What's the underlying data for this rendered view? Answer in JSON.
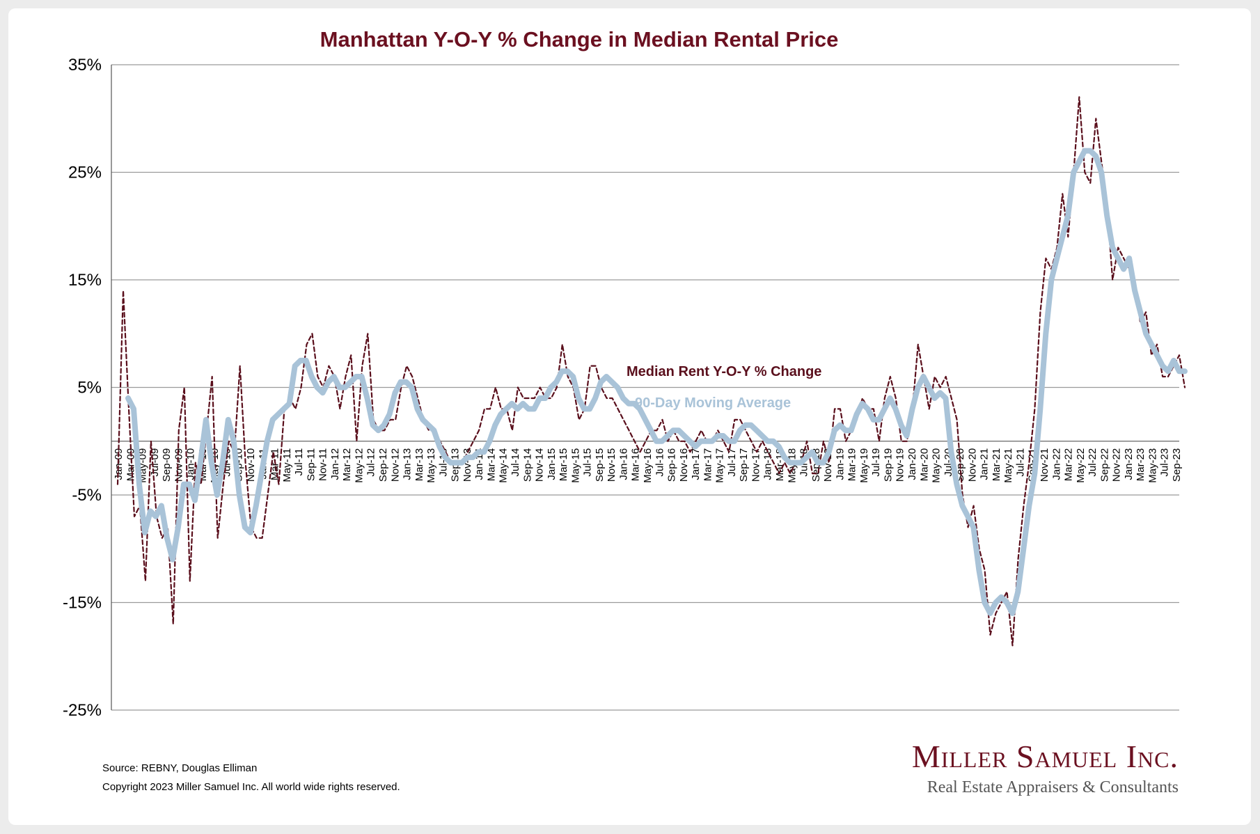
{
  "chart_data": {
    "type": "line",
    "title": "Manhattan Y-O-Y % Change in Median Rental Price",
    "ylim": [
      -25,
      35
    ],
    "yticks": [
      "35%",
      "25%",
      "15%",
      "5%",
      "-5%",
      "-15%",
      "-25%"
    ],
    "ytick_values": [
      35,
      25,
      15,
      5,
      -5,
      -15,
      -25
    ],
    "grid": true,
    "x_tick_labels": [
      "Jan-09",
      "Mar-09",
      "May-09",
      "Jul-09",
      "Sep-09",
      "Nov-09",
      "Jan-10",
      "Mar-10",
      "May-10",
      "Jul-10",
      "Sep-10",
      "Nov-10",
      "Jan-11",
      "Mar-11",
      "May-11",
      "Jul-11",
      "Sep-11",
      "Nov-11",
      "Jan-12",
      "Mar-12",
      "May-12",
      "Jul-12",
      "Sep-12",
      "Nov-12",
      "Jan-13",
      "Mar-13",
      "May-13",
      "Jul-13",
      "Sep-13",
      "Nov-13",
      "Jan-14",
      "Mar-14",
      "May-14",
      "Jul-14",
      "Sep-14",
      "Nov-14",
      "Jan-15",
      "Mar-15",
      "May-15",
      "Jul-15",
      "Sep-15",
      "Nov-15",
      "Jan-16",
      "Mar-16",
      "May-16",
      "Jul-16",
      "Sep-16",
      "Nov-16",
      "Jan-17",
      "Mar-17",
      "May-17",
      "Jul-17",
      "Sep-17",
      "Nov-17",
      "Jan-18",
      "Mar-18",
      "May-18",
      "Jul-18",
      "Sep-18",
      "Nov-18",
      "Jan-19",
      "Mar-19",
      "May-19",
      "Jul-19",
      "Sep-19",
      "Nov-19",
      "Jan-20",
      "Mar-20",
      "May-20",
      "Jul-20",
      "Sep-20",
      "Nov-20",
      "Jan-21",
      "Mar-21",
      "May-21",
      "Jul-21",
      "Sep-21",
      "Nov-21",
      "Jan-22",
      "Mar-22",
      "May-22",
      "Jul-22",
      "Sep-22",
      "Nov-22",
      "Jan-23",
      "Mar-23",
      "May-23",
      "Jul-23",
      "Sep-23"
    ],
    "series": [
      {
        "name": "Median Rent Y-O-Y % Change",
        "color": "#5a0f1c",
        "style": "dashed",
        "values": [
          -4,
          14,
          3,
          -7,
          -6,
          -13,
          0,
          -7,
          -9,
          -8,
          -17,
          1,
          5,
          -13,
          -2,
          -4,
          1,
          6,
          -9,
          -4,
          0,
          -1,
          7,
          -2,
          -8,
          -9,
          -9,
          -5,
          -1,
          -4,
          3,
          4,
          3,
          5,
          9,
          10,
          6,
          5,
          7,
          6,
          3,
          6,
          8,
          0,
          7,
          10,
          2,
          1,
          1,
          2,
          2,
          5,
          7,
          6,
          4,
          2,
          1,
          1,
          0,
          -1,
          -2,
          -2,
          -2,
          -1,
          0,
          1,
          3,
          3,
          5,
          3,
          3,
          1,
          5,
          4,
          4,
          4,
          5,
          4,
          4,
          5,
          9,
          6,
          5,
          2,
          3,
          7,
          7,
          5,
          4,
          4,
          3,
          2,
          1,
          0,
          -1,
          0,
          1,
          1,
          2,
          0,
          1,
          0,
          0,
          -1,
          0,
          1,
          0,
          0,
          1,
          0,
          -1,
          2,
          2,
          1,
          0,
          -1,
          0,
          -1,
          -2,
          -3,
          -2,
          -3,
          -2,
          -2,
          0,
          -3,
          -3,
          0,
          -2,
          3,
          3,
          0,
          1,
          2,
          4,
          3,
          3,
          0,
          4,
          6,
          4,
          0,
          0,
          3,
          9,
          6,
          3,
          6,
          5,
          6,
          4,
          2,
          -5,
          -8,
          -6,
          -10,
          -12,
          -18,
          -16,
          -15,
          -14,
          -19,
          -11,
          -6,
          -2,
          3,
          12,
          17,
          16,
          18,
          23,
          19,
          25,
          32,
          25,
          24,
          30,
          26,
          22,
          15,
          18,
          17,
          16,
          15,
          11,
          12,
          8,
          9,
          6,
          6,
          7,
          8,
          5
        ]
      },
      {
        "name": "90-Day Moving Average",
        "color": "#a9c3d8",
        "style": "solid",
        "values": [
          4,
          3,
          -4,
          -8.5,
          -6.5,
          -7,
          -6,
          -9,
          -11,
          -8,
          -4,
          -4,
          -5.5,
          -2,
          2,
          -2,
          -5,
          -2,
          2,
          0,
          -5,
          -8,
          -8.5,
          -6,
          -3,
          0,
          2,
          2.5,
          3,
          3.5,
          7,
          7.5,
          7.5,
          6,
          5,
          4.5,
          5.5,
          6,
          5,
          5,
          5.5,
          6,
          6,
          4,
          1.5,
          1,
          1.5,
          2.5,
          4.5,
          5.5,
          5.5,
          5,
          3,
          2,
          1.5,
          1,
          -0.5,
          -1.5,
          -2,
          -2,
          -2,
          -1.5,
          -1.5,
          -1,
          -1,
          0,
          1.5,
          2.5,
          3,
          3.5,
          3,
          3.5,
          3,
          3,
          4,
          4,
          5,
          5.5,
          6.5,
          6.5,
          6,
          4,
          3,
          3,
          4,
          5.5,
          6,
          5.5,
          5,
          4,
          3.5,
          3.5,
          3,
          2,
          1,
          0,
          0,
          0.5,
          1,
          1,
          0.5,
          0,
          -0.5,
          0,
          0,
          0,
          0.5,
          0.5,
          0,
          0,
          1,
          1.5,
          1.5,
          1,
          0.5,
          0,
          0,
          -0.5,
          -1.5,
          -2,
          -2,
          -2,
          -1.5,
          -1,
          -2,
          -2,
          -1,
          1,
          1.5,
          1,
          1,
          2.5,
          3.5,
          3,
          2,
          2,
          3,
          4,
          3,
          1.5,
          0.5,
          3,
          5,
          6,
          5,
          4,
          4.5,
          4,
          -1,
          -4,
          -6,
          -7,
          -8,
          -12,
          -15,
          -16,
          -15,
          -14.5,
          -15,
          -16,
          -14,
          -10,
          -6,
          -3,
          3,
          10,
          15,
          17,
          19,
          21,
          25,
          26,
          27,
          27,
          26.5,
          25,
          21,
          18,
          17,
          16,
          17,
          14,
          12,
          10,
          9,
          8,
          7,
          6.5,
          7.5,
          6.5,
          6.5
        ]
      }
    ],
    "annotations": [
      "Median Rent Y-O-Y % Change",
      "90-Day Moving Average"
    ]
  },
  "footer": {
    "source": "Source: REBNY, Douglas Elliman",
    "copyright": "Copyright 2023 Miller Samuel Inc.  All world wide rights reserved."
  },
  "brand": {
    "name": "Miller Samuel Inc.",
    "tagline": "Real Estate Appraisers & Consultants"
  }
}
